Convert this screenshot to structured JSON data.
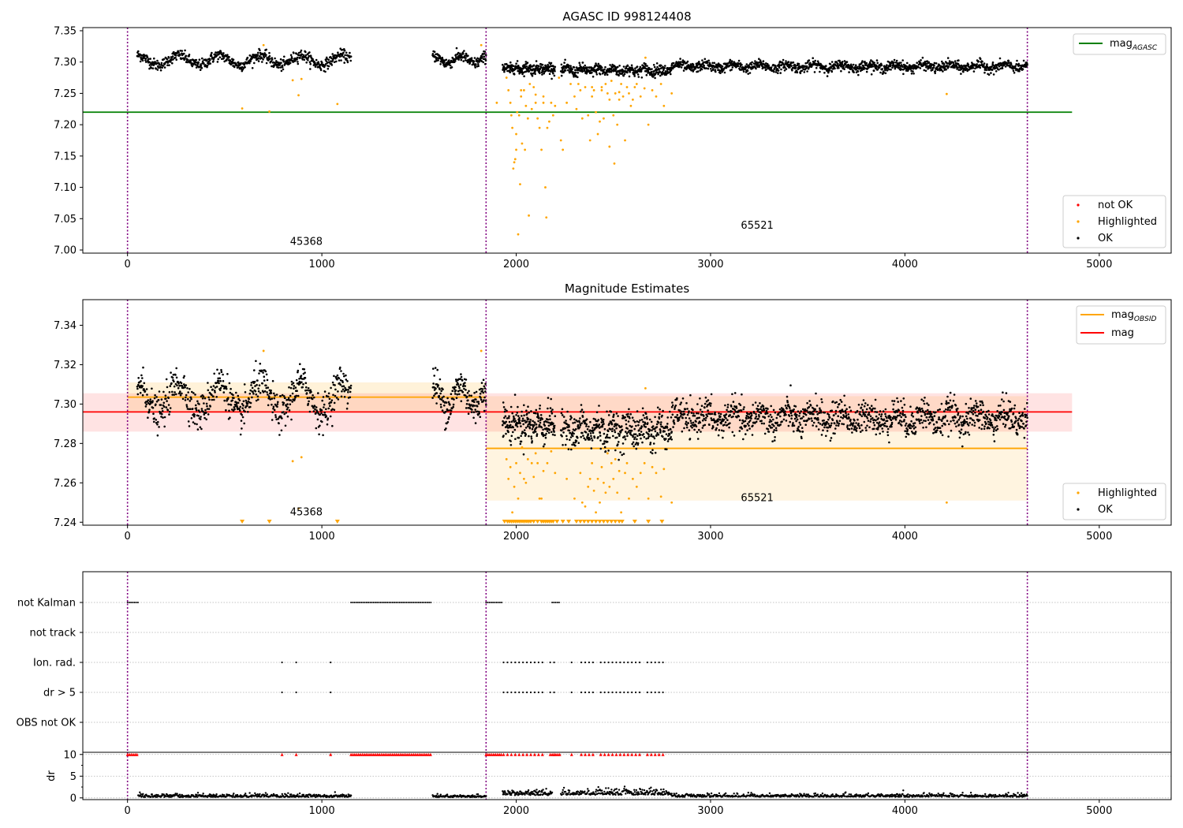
{
  "figure": {
    "colors": {
      "ok": "#000000",
      "highlighted": "#ffa500",
      "not_ok": "#ff0000",
      "agasc_line": "#008000",
      "obsid_line": "#ffa500",
      "mag_line": "#ff0000",
      "obs_boundary": "#800080"
    },
    "obs_boundaries": [
      0,
      1845,
      4630
    ]
  },
  "chart_data": [
    {
      "id": "panel1",
      "type": "scatter",
      "title": "AGASC ID 998124408",
      "xlim": [
        -230,
        5370
      ],
      "ylim": [
        6.995,
        7.355
      ],
      "xticks": [
        0,
        1000,
        2000,
        3000,
        4000,
        5000
      ],
      "yticks": [
        7.0,
        7.05,
        7.1,
        7.15,
        7.2,
        7.25,
        7.3,
        7.35
      ],
      "ytick_labels": [
        "7.00",
        "7.05",
        "7.10",
        "7.15",
        "7.20",
        "7.25",
        "7.30",
        "7.35"
      ],
      "hlines": [
        {
          "name": "magAGASC",
          "y": 7.22,
          "x": [
            -230,
            4860
          ],
          "color": "#008000"
        }
      ],
      "obsid_labels": [
        {
          "text": "45368",
          "x": 920,
          "y": 7.008
        },
        {
          "text": "65521",
          "x": 3240,
          "y": 7.034
        }
      ],
      "ok_segments": [
        {
          "x0": 50,
          "x1": 1150,
          "base": 7.303,
          "noise": 0.0045,
          "osc": 0.008,
          "period": 210,
          "n": 650
        },
        {
          "x0": 1570,
          "x1": 1845,
          "base": 7.304,
          "noise": 0.0045,
          "osc": 0.006,
          "period": 140,
          "n": 190
        },
        {
          "x0": 1930,
          "x1": 2200,
          "base": 7.29,
          "noise": 0.0045,
          "osc": 0.002,
          "period": 60,
          "n": 220
        },
        {
          "x0": 2230,
          "x1": 2800,
          "base": 7.287,
          "noise": 0.0045,
          "osc": 0.003,
          "period": 80,
          "n": 420
        },
        {
          "x0": 2800,
          "x1": 4630,
          "base": 7.293,
          "noise": 0.004,
          "osc": 0.003,
          "period": 140,
          "n": 1200
        }
      ],
      "highlighted_points": [
        [
          590,
          7.226
        ],
        [
          730,
          7.221
        ],
        [
          850,
          7.271
        ],
        [
          895,
          7.273
        ],
        [
          880,
          7.247
        ],
        [
          1080,
          7.233
        ],
        [
          700,
          7.327
        ],
        [
          1820,
          7.327
        ],
        [
          1950,
          7.275
        ],
        [
          1960,
          7.255
        ],
        [
          1970,
          7.235
        ],
        [
          1975,
          7.215
        ],
        [
          1980,
          7.195
        ],
        [
          1985,
          7.13
        ],
        [
          1990,
          7.14
        ],
        [
          1995,
          7.145
        ],
        [
          2000,
          7.185
        ],
        [
          2005,
          7.22
        ],
        [
          2010,
          7.025
        ],
        [
          2015,
          7.215
        ],
        [
          2020,
          7.105
        ],
        [
          2025,
          7.245
        ],
        [
          2030,
          7.17
        ],
        [
          2040,
          7.255
        ],
        [
          2045,
          7.16
        ],
        [
          2050,
          7.23
        ],
        [
          2060,
          7.21
        ],
        [
          2065,
          7.055
        ],
        [
          2080,
          7.225
        ],
        [
          2090,
          7.26
        ],
        [
          2100,
          7.235
        ],
        [
          2110,
          7.21
        ],
        [
          2120,
          7.195
        ],
        [
          2130,
          7.16
        ],
        [
          2140,
          7.235
        ],
        [
          2150,
          7.1
        ],
        [
          2155,
          7.052
        ],
        [
          2160,
          7.195
        ],
        [
          2170,
          7.205
        ],
        [
          2180,
          7.235
        ],
        [
          2190,
          7.215
        ],
        [
          2200,
          7.23
        ],
        [
          2220,
          7.275
        ],
        [
          2230,
          7.175
        ],
        [
          2240,
          7.16
        ],
        [
          2260,
          7.235
        ],
        [
          2280,
          7.265
        ],
        [
          2300,
          7.245
        ],
        [
          2310,
          7.225
        ],
        [
          2320,
          7.265
        ],
        [
          2330,
          7.255
        ],
        [
          2340,
          7.21
        ],
        [
          2355,
          7.26
        ],
        [
          2370,
          7.215
        ],
        [
          2380,
          7.175
        ],
        [
          2390,
          7.245
        ],
        [
          2400,
          7.255
        ],
        [
          2410,
          7.22
        ],
        [
          2420,
          7.185
        ],
        [
          2430,
          7.205
        ],
        [
          2440,
          7.255
        ],
        [
          2450,
          7.21
        ],
        [
          2460,
          7.265
        ],
        [
          2470,
          7.25
        ],
        [
          2480,
          7.165
        ],
        [
          2490,
          7.27
        ],
        [
          2500,
          7.215
        ],
        [
          2505,
          7.138
        ],
        [
          2510,
          7.25
        ],
        [
          2520,
          7.2
        ],
        [
          2530,
          7.24
        ],
        [
          2540,
          7.265
        ],
        [
          2550,
          7.245
        ],
        [
          2560,
          7.175
        ],
        [
          2570,
          7.26
        ],
        [
          2580,
          7.25
        ],
        [
          2590,
          7.23
        ],
        [
          2610,
          7.26
        ],
        [
          2620,
          7.265
        ],
        [
          2640,
          7.245
        ],
        [
          2660,
          7.258
        ],
        [
          2680,
          7.2
        ],
        [
          2700,
          7.255
        ],
        [
          2720,
          7.245
        ],
        [
          2745,
          7.265
        ],
        [
          2760,
          7.23
        ],
        [
          2800,
          7.25
        ],
        [
          4215,
          7.249
        ],
        [
          1900,
          7.235
        ],
        [
          2000,
          7.16
        ],
        [
          2025,
          7.255
        ],
        [
          2070,
          7.265
        ],
        [
          2100,
          7.248
        ],
        [
          2140,
          7.245
        ],
        [
          2390,
          7.26
        ],
        [
          2440,
          7.26
        ],
        [
          2480,
          7.24
        ],
        [
          2530,
          7.252
        ],
        [
          2600,
          7.24
        ],
        [
          2665,
          7.307
        ]
      ],
      "legend_top": [
        {
          "label": "mag",
          "sub": "AGASC",
          "color": "#008000"
        }
      ],
      "legend_bottom": [
        {
          "label": "not OK",
          "color": "#ff0000"
        },
        {
          "label": "Highlighted",
          "color": "#ffa500"
        },
        {
          "label": "OK",
          "color": "#000000"
        }
      ]
    },
    {
      "id": "panel2",
      "type": "scatter",
      "title": "Magnitude Estimates",
      "xlim": [
        -230,
        5370
      ],
      "ylim": [
        7.2385,
        7.353
      ],
      "xticks": [
        0,
        1000,
        2000,
        3000,
        4000,
        5000
      ],
      "yticks": [
        7.24,
        7.26,
        7.28,
        7.3,
        7.32,
        7.34
      ],
      "ytick_labels": [
        "7.24",
        "7.26",
        "7.28",
        "7.30",
        "7.32",
        "7.34"
      ],
      "bands": [
        {
          "x": [
            0,
            1845
          ],
          "y": [
            7.296,
            7.311
          ],
          "color": "#ffa500",
          "opacity": 0.15
        },
        {
          "x": [
            1845,
            4630
          ],
          "y": [
            7.251,
            7.304
          ],
          "color": "#ffa500",
          "opacity": 0.12
        },
        {
          "x": [
            -230,
            4860
          ],
          "y": [
            7.286,
            7.3055
          ],
          "color": "#ff0000",
          "opacity": 0.11
        }
      ],
      "hlines": [
        {
          "name": "magOBSID-1",
          "y": 7.3035,
          "x": [
            0,
            1845
          ],
          "color": "#ffa500"
        },
        {
          "name": "magOBSID-2",
          "y": 7.2775,
          "x": [
            1845,
            4630
          ],
          "color": "#ffa500"
        },
        {
          "name": "mag",
          "y": 7.296,
          "x": [
            -230,
            4860
          ],
          "color": "#ff0000"
        }
      ],
      "obsid_labels": [
        {
          "text": "45368",
          "x": 920,
          "y": 7.2435
        },
        {
          "text": "65521",
          "x": 3240,
          "y": 7.2508
        }
      ],
      "ok_segments": [
        {
          "x0": 50,
          "x1": 1150,
          "base": 7.303,
          "noise": 0.0045,
          "osc": 0.008,
          "period": 210,
          "n": 650
        },
        {
          "x0": 1570,
          "x1": 1845,
          "base": 7.304,
          "noise": 0.0045,
          "osc": 0.006,
          "period": 140,
          "n": 190
        },
        {
          "x0": 1930,
          "x1": 2200,
          "base": 7.29,
          "noise": 0.0045,
          "osc": 0.002,
          "period": 60,
          "n": 220
        },
        {
          "x0": 2230,
          "x1": 2800,
          "base": 7.287,
          "noise": 0.0045,
          "osc": 0.003,
          "period": 80,
          "n": 420
        },
        {
          "x0": 2800,
          "x1": 4630,
          "base": 7.293,
          "noise": 0.004,
          "osc": 0.003,
          "period": 140,
          "n": 1200
        }
      ],
      "highlighted_points": [
        [
          850,
          7.271
        ],
        [
          895,
          7.273
        ],
        [
          880,
          7.247
        ],
        [
          1820,
          7.327
        ],
        [
          700,
          7.327
        ],
        [
          1950,
          7.272
        ],
        [
          1960,
          7.262
        ],
        [
          1970,
          7.268
        ],
        [
          1980,
          7.245
        ],
        [
          1990,
          7.258
        ],
        [
          2000,
          7.27
        ],
        [
          2010,
          7.252
        ],
        [
          2020,
          7.265
        ],
        [
          2030,
          7.278
        ],
        [
          2040,
          7.262
        ],
        [
          2050,
          7.26
        ],
        [
          2060,
          7.272
        ],
        [
          2080,
          7.27
        ],
        [
          2090,
          7.263
        ],
        [
          2100,
          7.275
        ],
        [
          2110,
          7.27
        ],
        [
          2120,
          7.252
        ],
        [
          2130,
          7.252
        ],
        [
          2140,
          7.266
        ],
        [
          2160,
          7.27
        ],
        [
          2180,
          7.276
        ],
        [
          2200,
          7.265
        ],
        [
          2260,
          7.262
        ],
        [
          2300,
          7.252
        ],
        [
          2330,
          7.265
        ],
        [
          2340,
          7.25
        ],
        [
          2355,
          7.248
        ],
        [
          2370,
          7.258
        ],
        [
          2380,
          7.262
        ],
        [
          2390,
          7.27
        ],
        [
          2400,
          7.256
        ],
        [
          2410,
          7.245
        ],
        [
          2420,
          7.262
        ],
        [
          2430,
          7.25
        ],
        [
          2440,
          7.268
        ],
        [
          2450,
          7.26
        ],
        [
          2460,
          7.255
        ],
        [
          2470,
          7.275
        ],
        [
          2480,
          7.258
        ],
        [
          2490,
          7.27
        ],
        [
          2500,
          7.262
        ],
        [
          2510,
          7.272
        ],
        [
          2520,
          7.255
        ],
        [
          2530,
          7.266
        ],
        [
          2540,
          7.245
        ],
        [
          2560,
          7.265
        ],
        [
          2570,
          7.27
        ],
        [
          2580,
          7.252
        ],
        [
          2600,
          7.262
        ],
        [
          2620,
          7.258
        ],
        [
          2640,
          7.265
        ],
        [
          2660,
          7.27
        ],
        [
          2680,
          7.252
        ],
        [
          2700,
          7.268
        ],
        [
          2720,
          7.265
        ],
        [
          2745,
          7.253
        ],
        [
          2760,
          7.267
        ],
        [
          2800,
          7.25
        ],
        [
          4215,
          7.25
        ],
        [
          2665,
          7.308
        ]
      ],
      "clipped_markers": [
        590,
        730,
        1080,
        1940,
        1955,
        1965,
        1975,
        1985,
        1995,
        2005,
        2015,
        2025,
        2035,
        2045,
        2055,
        2065,
        2075,
        2090,
        2110,
        2130,
        2140,
        2150,
        2160,
        2170,
        2180,
        2190,
        2210,
        2240,
        2270,
        2310,
        2330,
        2350,
        2370,
        2390,
        2410,
        2430,
        2450,
        2470,
        2490,
        2510,
        2530,
        2545,
        2610,
        2680,
        2750
      ],
      "legend_top": [
        {
          "label": "mag",
          "sub": "OBSID",
          "color": "#ffa500"
        },
        {
          "label": "mag",
          "sub": "",
          "color": "#ff0000"
        }
      ],
      "legend_bottom": [
        {
          "label": "Highlighted",
          "color": "#ffa500"
        },
        {
          "label": "OK",
          "color": "#000000"
        }
      ]
    },
    {
      "id": "panel3",
      "type": "scatter",
      "xlim": [
        -230,
        5370
      ],
      "xticks": [
        0,
        1000,
        2000,
        3000,
        4000,
        5000
      ],
      "flag_rows": [
        {
          "label": "not Kalman",
          "ranges": [
            [
              0,
              55
            ],
            [
              1150,
              1565
            ],
            [
              1845,
              1930
            ],
            [
              2185,
              2225
            ]
          ],
          "points": []
        },
        {
          "label": "not track",
          "ranges": [],
          "points": []
        },
        {
          "label": "Ion. rad.",
          "ranges": [],
          "points": [
            795,
            868,
            1045,
            1935,
            1955,
            1975,
            1995,
            2015,
            2035,
            2055,
            2075,
            2095,
            2115,
            2135,
            2175,
            2195,
            2285,
            2335,
            2355,
            2375,
            2395,
            2435,
            2455,
            2475,
            2495,
            2515,
            2535,
            2555,
            2575,
            2595,
            2615,
            2635,
            2675,
            2695,
            2715,
            2735,
            2755
          ]
        },
        {
          "label": "dr > 5",
          "ranges": [],
          "points": [
            795,
            868,
            1045,
            1935,
            1955,
            1975,
            1995,
            2015,
            2035,
            2055,
            2075,
            2095,
            2115,
            2135,
            2175,
            2195,
            2285,
            2335,
            2355,
            2375,
            2395,
            2435,
            2455,
            2475,
            2495,
            2515,
            2535,
            2555,
            2575,
            2595,
            2615,
            2635,
            2675,
            2695,
            2715,
            2735,
            2755
          ]
        },
        {
          "label": "OBS not OK",
          "ranges": [],
          "points": []
        }
      ]
    },
    {
      "id": "panel4",
      "type": "scatter",
      "ylabel": "dr",
      "xlim": [
        -230,
        5370
      ],
      "ylim": [
        -0.4,
        10.5
      ],
      "xticks": [
        0,
        1000,
        2000,
        3000,
        4000,
        5000
      ],
      "yticks": [
        0,
        5,
        10
      ],
      "ytick_labels": [
        "0",
        "5",
        "10"
      ],
      "red_ranges": [
        [
          0,
          55
        ],
        [
          1150,
          1565
        ],
        [
          1845,
          1930
        ],
        [
          2185,
          2225
        ]
      ],
      "red_points": [
        795,
        868,
        1045,
        1935,
        1955,
        1975,
        1995,
        2015,
        2035,
        2055,
        2075,
        2095,
        2115,
        2135,
        2175,
        2195,
        2285,
        2335,
        2355,
        2375,
        2395,
        2435,
        2455,
        2475,
        2495,
        2515,
        2535,
        2555,
        2575,
        2595,
        2615,
        2635,
        2675,
        2695,
        2715,
        2735,
        2755
      ],
      "dr_segments": [
        {
          "x0": 55,
          "x1": 1150,
          "base": 0.35,
          "spread": 0.35,
          "n": 400
        },
        {
          "x0": 1570,
          "x1": 1845,
          "base": 0.3,
          "spread": 0.3,
          "n": 100
        },
        {
          "x0": 1930,
          "x1": 2185,
          "base": 0.9,
          "spread": 0.6,
          "n": 110
        },
        {
          "x0": 2230,
          "x1": 2800,
          "base": 1.0,
          "spread": 0.6,
          "n": 220
        },
        {
          "x0": 2800,
          "x1": 4630,
          "base": 0.4,
          "spread": 0.35,
          "n": 600
        }
      ]
    }
  ]
}
